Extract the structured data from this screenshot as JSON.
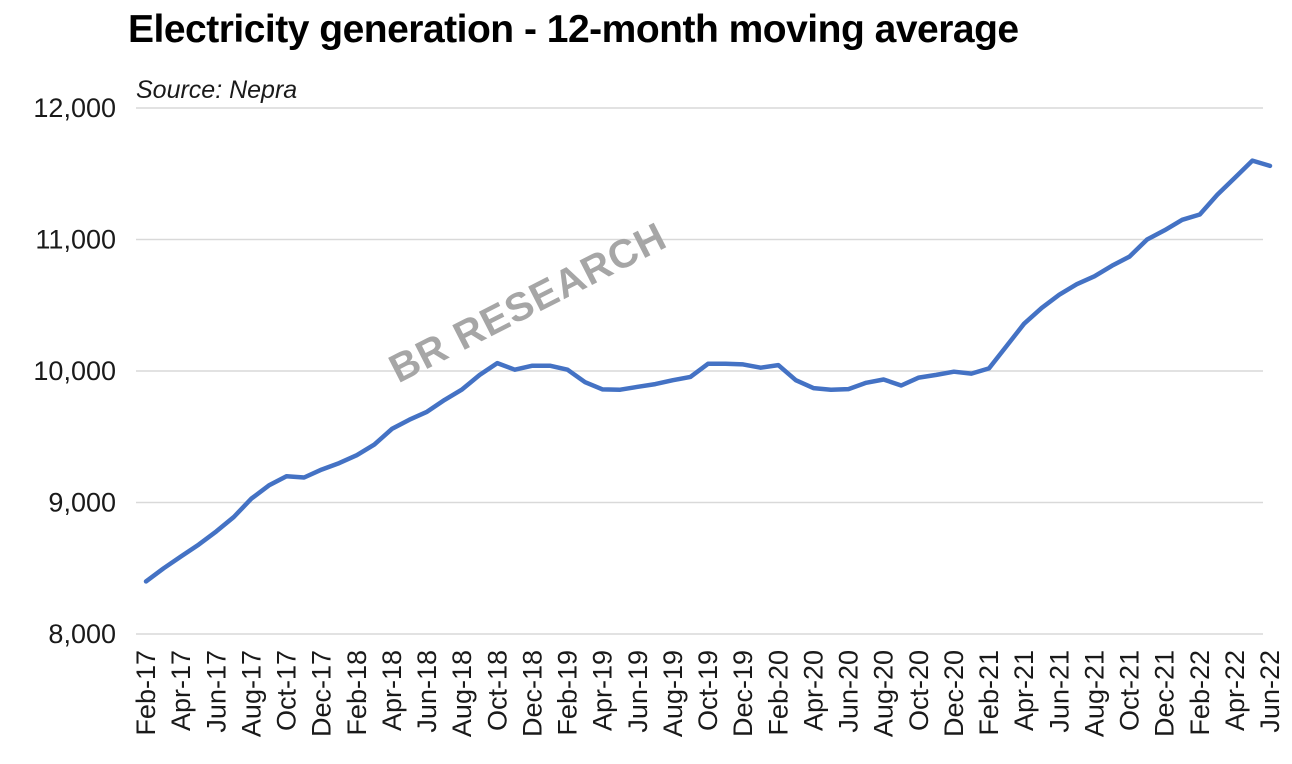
{
  "page": {
    "background": "#ffffff"
  },
  "chart": {
    "title": "Electricity generation - 12-month moving average",
    "source_note": "Source: Nepra",
    "watermark": "BR RESEARCH"
  },
  "chart_data": {
    "type": "line",
    "title": "Electricity generation - 12-month moving average",
    "subtitle": "Source: Nepra",
    "watermark": "BR RESEARCH",
    "legend": "none",
    "grid": "horizontal",
    "ylim": [
      8000,
      12000
    ],
    "y_tick_step": 1000,
    "y_tick_labels": [
      "8,000",
      "9,000",
      "10,000",
      "11,000",
      "12,000"
    ],
    "x_tick_labels": [
      "Feb-17",
      "Apr-17",
      "Jun-17",
      "Aug-17",
      "Oct-17",
      "Dec-17",
      "Feb-18",
      "Apr-18",
      "Jun-18",
      "Aug-18",
      "Oct-18",
      "Dec-18",
      "Feb-19",
      "Apr-19",
      "Jun-19",
      "Aug-19",
      "Oct-19",
      "Dec-19",
      "Feb-20",
      "Apr-20",
      "Jun-20",
      "Aug-20",
      "Oct-20",
      "Dec-20",
      "Feb-21",
      "Apr-21",
      "Jun-21",
      "Aug-21",
      "Oct-21",
      "Dec-21",
      "Feb-22",
      "Apr-22",
      "Jun-22"
    ],
    "x_tick_every": 2,
    "x": [
      "Feb-17",
      "Mar-17",
      "Apr-17",
      "May-17",
      "Jun-17",
      "Jul-17",
      "Aug-17",
      "Sep-17",
      "Oct-17",
      "Nov-17",
      "Dec-17",
      "Jan-18",
      "Feb-18",
      "Mar-18",
      "Apr-18",
      "May-18",
      "Jun-18",
      "Jul-18",
      "Aug-18",
      "Sep-18",
      "Oct-18",
      "Nov-18",
      "Dec-18",
      "Jan-19",
      "Feb-19",
      "Mar-19",
      "Apr-19",
      "May-19",
      "Jun-19",
      "Jul-19",
      "Aug-19",
      "Sep-19",
      "Oct-19",
      "Nov-19",
      "Dec-19",
      "Jan-20",
      "Feb-20",
      "Mar-20",
      "Apr-20",
      "May-20",
      "Jun-20",
      "Jul-20",
      "Aug-20",
      "Sep-20",
      "Oct-20",
      "Nov-20",
      "Dec-20",
      "Jan-21",
      "Feb-21",
      "Mar-21",
      "Apr-21",
      "May-21",
      "Jun-21",
      "Jul-21",
      "Aug-21",
      "Sep-21",
      "Oct-21",
      "Nov-21",
      "Dec-21",
      "Jan-22",
      "Feb-22",
      "Mar-22",
      "Apr-22",
      "May-22",
      "Jun-22"
    ],
    "values": [
      8400,
      8500,
      8590,
      8680,
      8780,
      8890,
      9030,
      9130,
      9200,
      9190,
      9250,
      9300,
      9360,
      9440,
      9560,
      9630,
      9690,
      9780,
      9860,
      9970,
      10060,
      10010,
      10040,
      10040,
      10010,
      9915,
      9860,
      9858,
      9880,
      9900,
      9930,
      9955,
      10055,
      10055,
      10050,
      10025,
      10045,
      9930,
      9870,
      9858,
      9862,
      9910,
      9935,
      9890,
      9950,
      9970,
      9995,
      9980,
      10020,
      10190,
      10360,
      10480,
      10580,
      10660,
      10720,
      10800,
      10870,
      11000,
      11070,
      11150,
      11190,
      11340,
      11470,
      11600,
      11560
    ],
    "colors": {
      "line": "#4472c4",
      "gridline": "#d9d9d9",
      "axis_text": "#1a1a1a",
      "watermark": "#a6a6a6",
      "background": "#ffffff"
    }
  }
}
